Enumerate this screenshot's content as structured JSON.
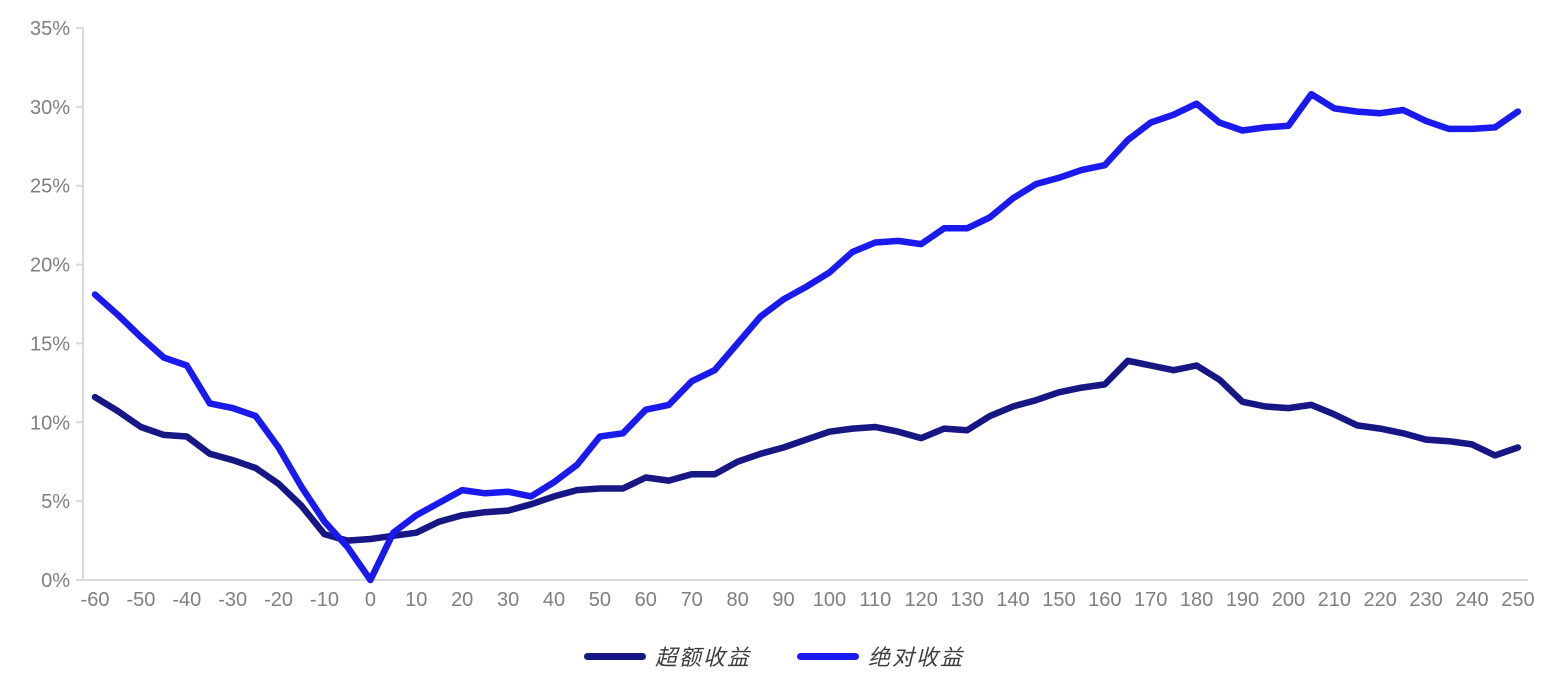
{
  "chart_data": {
    "type": "line",
    "title": "",
    "xlabel": "",
    "ylabel": "",
    "grid": false,
    "legend_position": "bottom-center",
    "axis_color": "#D9D9D9",
    "tick_label_color": "#7F7F7F",
    "ylim": [
      0,
      35
    ],
    "y_tick_values": [
      0,
      5,
      10,
      15,
      20,
      25,
      30,
      35
    ],
    "y_tick_labels": [
      "0%",
      "5%",
      "10%",
      "15%",
      "20%",
      "25%",
      "30%",
      "35%"
    ],
    "x_tick_values": [
      -60,
      -50,
      -40,
      -30,
      -20,
      -10,
      0,
      10,
      20,
      30,
      40,
      50,
      60,
      70,
      80,
      90,
      100,
      110,
      120,
      130,
      140,
      150,
      160,
      170,
      180,
      190,
      200,
      210,
      220,
      230,
      240,
      250
    ],
    "x_tick_labels": [
      "-60",
      "-50",
      "-40",
      "-30",
      "-20",
      "-10",
      "0",
      "10",
      "20",
      "30",
      "40",
      "50",
      "60",
      "70",
      "80",
      "90",
      "100",
      "110",
      "120",
      "130",
      "140",
      "150",
      "160",
      "170",
      "180",
      "190",
      "200",
      "210",
      "220",
      "230",
      "240",
      "250"
    ],
    "x": [
      -60,
      -55,
      -50,
      -45,
      -40,
      -35,
      -30,
      -25,
      -20,
      -15,
      -10,
      -5,
      0,
      5,
      10,
      15,
      20,
      25,
      30,
      35,
      40,
      45,
      50,
      55,
      60,
      65,
      70,
      75,
      80,
      85,
      90,
      95,
      100,
      105,
      110,
      115,
      120,
      125,
      130,
      135,
      140,
      145,
      150,
      155,
      160,
      165,
      170,
      175,
      180,
      185,
      190,
      195,
      200,
      205,
      210,
      215,
      220,
      225,
      230,
      235,
      240,
      245,
      250
    ],
    "series": [
      {
        "name": "超额收益",
        "color": "#161685",
        "values": [
          11.6,
          10.7,
          9.7,
          9.2,
          9.1,
          8.0,
          7.6,
          7.1,
          6.1,
          4.7,
          2.9,
          2.5,
          2.6,
          2.8,
          3.0,
          3.7,
          4.1,
          4.3,
          4.4,
          4.8,
          5.3,
          5.7,
          5.8,
          5.8,
          6.5,
          6.3,
          6.7,
          6.7,
          7.5,
          8.0,
          8.4,
          8.9,
          9.4,
          9.6,
          9.7,
          9.4,
          9.0,
          9.6,
          9.5,
          10.4,
          11.0,
          11.4,
          11.9,
          12.2,
          12.4,
          13.9,
          13.6,
          13.3,
          13.6,
          12.7,
          11.3,
          11.0,
          10.9,
          11.1,
          10.5,
          9.8,
          9.6,
          9.3,
          8.9,
          8.8,
          8.6,
          7.9,
          8.4
        ]
      },
      {
        "name": "绝对收益",
        "color": "#1A1AEE",
        "values": [
          18.1,
          16.8,
          15.4,
          14.1,
          13.6,
          11.2,
          10.9,
          10.4,
          8.4,
          5.9,
          3.7,
          2.1,
          0.0,
          3.0,
          4.1,
          4.9,
          5.7,
          5.5,
          5.6,
          5.3,
          6.2,
          7.3,
          9.1,
          9.3,
          10.8,
          11.1,
          12.6,
          13.3,
          15.0,
          16.7,
          17.8,
          18.6,
          19.5,
          20.8,
          21.4,
          21.5,
          21.3,
          22.3,
          22.3,
          23.0,
          24.2,
          25.1,
          25.5,
          26.0,
          26.3,
          27.9,
          29.0,
          29.5,
          30.2,
          29.0,
          28.5,
          28.7,
          28.8,
          30.8,
          29.9,
          29.7,
          29.6,
          29.8,
          29.1,
          28.6,
          28.6,
          28.7,
          29.7
        ]
      }
    ]
  }
}
